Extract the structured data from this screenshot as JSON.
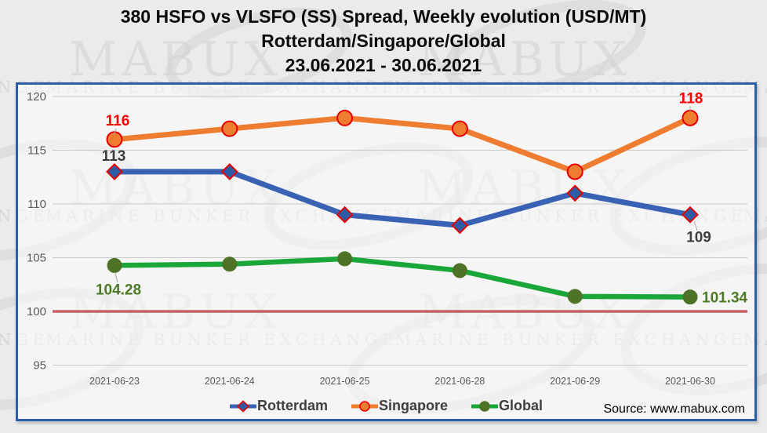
{
  "title": {
    "line1": "380 HSFO vs VLSFO (SS) Spread, Weekly evolution (USD/MT)",
    "line2": "Rotterdam/Singapore/Global",
    "line3": "23.06.2021 - 30.06.2021"
  },
  "watermark": {
    "brand": "MABUX",
    "tagline": "MARINE BUNKER EXCHANGE"
  },
  "source": "Source: www.mabux.com",
  "frame_color": "#2c5fa7",
  "chart_data": {
    "type": "line",
    "title": "380 HSFO vs VLSFO (SS) Spread, Weekly evolution (USD/MT) Rotterdam/Singapore/Global 23.06.2021 - 30.06.2021",
    "categories": [
      "2021-06-23",
      "2021-06-24",
      "2021-06-25",
      "2021-06-28",
      "2021-06-29",
      "2021-06-30"
    ],
    "series": [
      {
        "name": "Rotterdam",
        "color": "#3a62b4",
        "marker": "diamond",
        "marker_fill": "#2d5ca6",
        "marker_outline": "#e80000",
        "values": [
          113,
          113,
          109,
          108,
          111,
          109
        ]
      },
      {
        "name": "Singapore",
        "color": "#ee7d31",
        "marker": "circle",
        "marker_fill": "#ee7d31",
        "marker_outline": "#e80000",
        "values": [
          116,
          117,
          118,
          117,
          113,
          118
        ]
      },
      {
        "name": "Global",
        "color": "#1aa638",
        "marker": "circle",
        "marker_fill": "#4e7226",
        "marker_outline": "#4e7226",
        "values": [
          104.28,
          104.4,
          104.9,
          103.8,
          101.4,
          101.34
        ]
      }
    ],
    "ylim": [
      95,
      120
    ],
    "yticks": [
      95,
      100,
      105,
      110,
      115,
      120
    ],
    "baseline": {
      "value": 100,
      "color": "#c76064"
    },
    "grid": true,
    "legend_position": "bottom",
    "point_labels": [
      {
        "series": "Singapore",
        "index": 0,
        "text": "116",
        "color": "#fe0000"
      },
      {
        "series": "Rotterdam",
        "index": 0,
        "text": "113",
        "color": "#3d3d3d"
      },
      {
        "series": "Global",
        "index": 0,
        "text": "104.28",
        "color": "#4c7a26"
      },
      {
        "series": "Singapore",
        "index": 5,
        "text": "118",
        "color": "#fe0000"
      },
      {
        "series": "Rotterdam",
        "index": 5,
        "text": "109",
        "color": "#3d3d3d"
      },
      {
        "series": "Global",
        "index": 5,
        "text": "101.34",
        "color": "#4c7a26"
      }
    ]
  }
}
